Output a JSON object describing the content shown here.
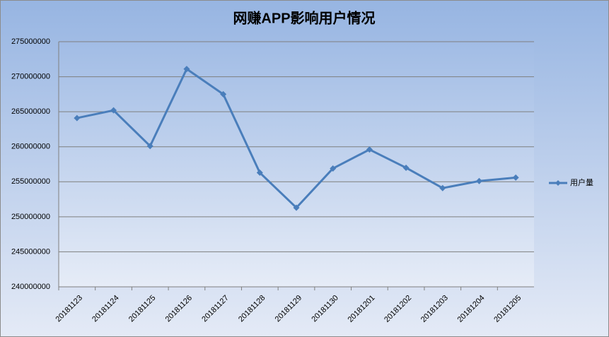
{
  "chart_data": {
    "type": "line",
    "title": "网赚APP影响用户情况",
    "categories": [
      "20181123",
      "20181124",
      "20181125",
      "20181126",
      "20181127",
      "20181128",
      "20181129",
      "20181130",
      "20181201",
      "20181202",
      "20181203",
      "20181204",
      "20181205"
    ],
    "series": [
      {
        "name": "用户量",
        "color": "#4a7ebb",
        "values": [
          264100000,
          265200000,
          260100000,
          271100000,
          267500000,
          256300000,
          251300000,
          256900000,
          259600000,
          257000000,
          254100000,
          255100000,
          255600000
        ]
      }
    ],
    "ylim": [
      240000000,
      275000000
    ],
    "yticks": [
      240000000,
      245000000,
      250000000,
      255000000,
      260000000,
      265000000,
      270000000,
      275000000
    ],
    "grid": true,
    "legend": "right"
  }
}
